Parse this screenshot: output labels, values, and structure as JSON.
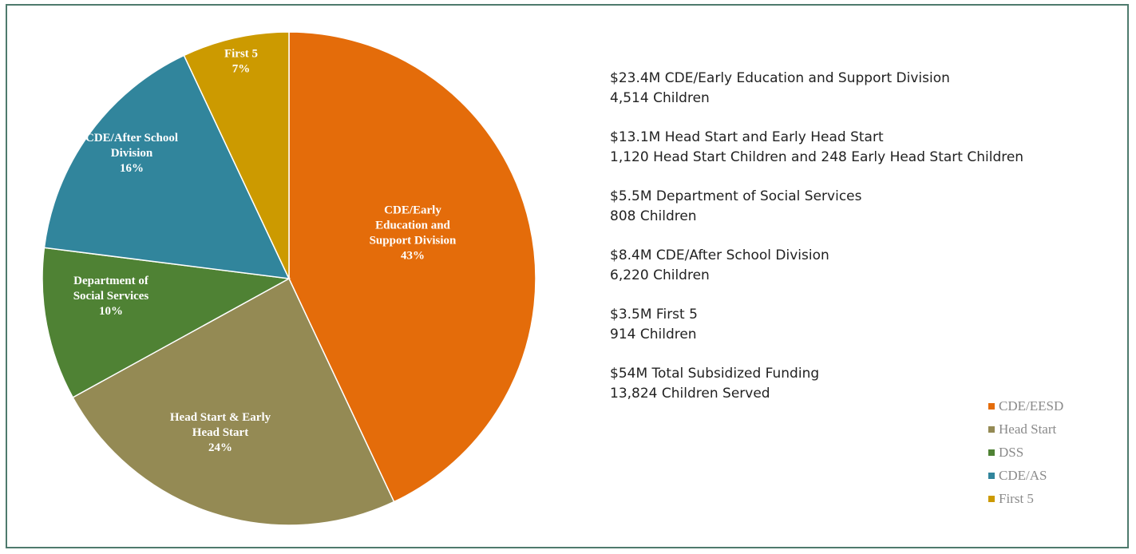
{
  "chart_data": {
    "type": "pie",
    "slices": [
      {
        "label_lines": [
          "CDE/Early",
          "Education and",
          "Support Division"
        ],
        "percent_label": "43%",
        "value": 43,
        "color": "#e46c0a"
      },
      {
        "label_lines": [
          "Head Start & Early",
          "Head Start"
        ],
        "percent_label": "24%",
        "value": 24,
        "color": "#948a54"
      },
      {
        "label_lines": [
          "Department of",
          "Social Services"
        ],
        "percent_label": "10%",
        "value": 10,
        "color": "#4f8234"
      },
      {
        "label_lines": [
          "CDE/After School",
          "Division"
        ],
        "percent_label": "16%",
        "value": 16,
        "color": "#31859c"
      },
      {
        "label_lines": [
          "First 5"
        ],
        "percent_label": "7%",
        "value": 7,
        "color": "#cc9a00"
      }
    ],
    "legend": [
      {
        "label": "CDE/EESD",
        "color": "#e46c0a"
      },
      {
        "label": "Head Start",
        "color": "#948a54"
      },
      {
        "label": "DSS",
        "color": "#4f8234"
      },
      {
        "label": "CDE/AS",
        "color": "#31859c"
      },
      {
        "label": "First 5",
        "color": "#cc9a00"
      }
    ],
    "legend_position": "bottom-right"
  },
  "summary": [
    {
      "line1": "$23.4M CDE/Early Education and Support Division",
      "line2": "4,514 Children"
    },
    {
      "line1": "$13.1M Head Start and Early Head Start",
      "line2": "1,120 Head Start Children and 248 Early Head Start Children"
    },
    {
      "line1": "$5.5M Department of Social Services",
      "line2": "808 Children"
    },
    {
      "line1": "$8.4M CDE/After School Division",
      "line2": "6,220 Children"
    },
    {
      "line1": "$3.5M First 5",
      "line2": "914 Children"
    },
    {
      "line1": "$54M Total Subsidized Funding",
      "line2": "13,824 Children Served"
    }
  ]
}
